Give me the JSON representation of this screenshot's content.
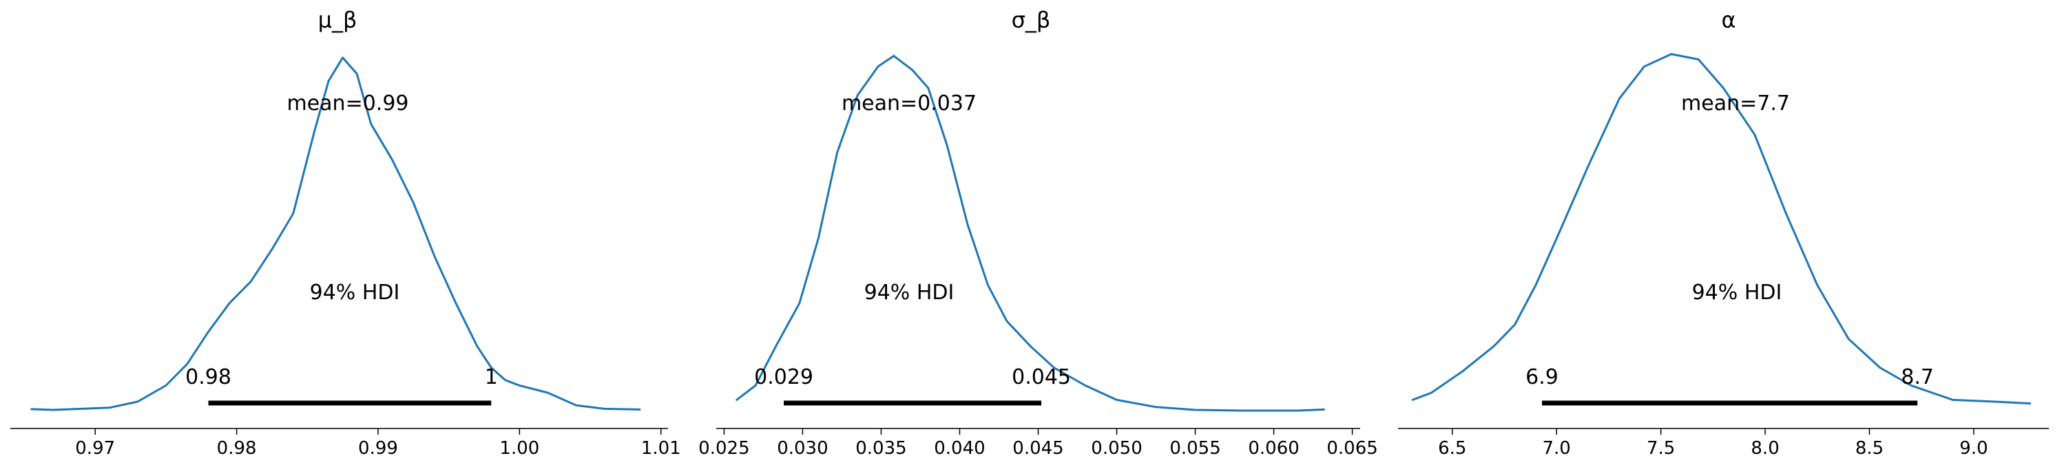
{
  "colors": {
    "curve": "#1f77b4",
    "hdi_bar": "#000000",
    "axis": "#000000",
    "background": "#ffffff"
  },
  "chart_data": [
    {
      "type": "density",
      "title": "μ_β",
      "mean_label": "mean=0.99",
      "hdi_label": "94% HDI",
      "hdi": {
        "low": 0.978,
        "high": 0.998,
        "low_label": "0.98",
        "high_label": "1"
      },
      "xlim": [
        0.964,
        1.0105
      ],
      "ylim": [
        0,
        1
      ],
      "xticks": [
        0.97,
        0.98,
        0.99,
        1.0,
        1.01
      ],
      "xtick_labels": [
        "0.97",
        "0.98",
        "0.99",
        "1.00",
        "1.01"
      ],
      "curve": {
        "x": [
          0.9655,
          0.967,
          0.969,
          0.971,
          0.973,
          0.975,
          0.9765,
          0.978,
          0.9795,
          0.981,
          0.9825,
          0.984,
          0.9855,
          0.9865,
          0.9875,
          0.9885,
          0.9895,
          0.991,
          0.9925,
          0.994,
          0.9955,
          0.997,
          0.998,
          0.999,
          1.0,
          1.002,
          1.004,
          1.006,
          1.0085
        ],
        "y": [
          0.004,
          0.002,
          0.005,
          0.008,
          0.025,
          0.07,
          0.13,
          0.22,
          0.3,
          0.36,
          0.45,
          0.55,
          0.78,
          0.92,
          0.985,
          0.94,
          0.8,
          0.7,
          0.58,
          0.43,
          0.3,
          0.18,
          0.12,
          0.085,
          0.07,
          0.05,
          0.015,
          0.005,
          0.003
        ]
      }
    },
    {
      "type": "density",
      "title": "σ_β",
      "mean_label": "mean=0.037",
      "hdi_label": "94% HDI",
      "hdi": {
        "low": 0.0288,
        "high": 0.0452,
        "low_label": "0.029",
        "high_label": "0.045"
      },
      "xlim": [
        0.0245,
        0.0655
      ],
      "ylim": [
        0,
        1
      ],
      "xticks": [
        0.025,
        0.03,
        0.035,
        0.04,
        0.045,
        0.05,
        0.055,
        0.06,
        0.065
      ],
      "xtick_labels": [
        "0.025",
        "0.030",
        "0.035",
        "0.040",
        "0.045",
        "0.050",
        "0.055",
        "0.060",
        "0.065"
      ],
      "curve": {
        "x": [
          0.0258,
          0.027,
          0.0283,
          0.0298,
          0.031,
          0.0322,
          0.0335,
          0.0348,
          0.0358,
          0.037,
          0.038,
          0.0392,
          0.0405,
          0.0418,
          0.043,
          0.0445,
          0.046,
          0.048,
          0.05,
          0.0525,
          0.055,
          0.058,
          0.0615,
          0.0632
        ],
        "y": [
          0.03,
          0.07,
          0.18,
          0.3,
          0.48,
          0.72,
          0.88,
          0.96,
          0.99,
          0.95,
          0.9,
          0.74,
          0.52,
          0.35,
          0.25,
          0.18,
          0.12,
          0.07,
          0.03,
          0.01,
          0.002,
          0.0,
          0.0,
          0.003
        ]
      }
    },
    {
      "type": "density",
      "title": "α",
      "mean_label": "mean=7.7",
      "hdi_label": "94% HDI",
      "hdi": {
        "low": 6.93,
        "high": 8.73,
        "low_label": "6.9",
        "high_label": "8.7"
      },
      "xlim": [
        6.24,
        9.36
      ],
      "ylim": [
        0,
        1
      ],
      "xticks": [
        6.5,
        7.0,
        7.5,
        8.0,
        8.5,
        9.0
      ],
      "xtick_labels": [
        "6.5",
        "7.0",
        "7.5",
        "8.0",
        "8.5",
        "9.0"
      ],
      "curve": {
        "x": [
          6.31,
          6.4,
          6.55,
          6.7,
          6.8,
          6.9,
          7.0,
          7.15,
          7.3,
          7.42,
          7.55,
          7.68,
          7.8,
          7.95,
          8.1,
          8.25,
          8.4,
          8.55,
          8.7,
          8.8,
          8.9,
          9.1,
          9.27
        ],
        "y": [
          0.03,
          0.05,
          0.11,
          0.18,
          0.24,
          0.35,
          0.48,
          0.68,
          0.87,
          0.96,
          0.995,
          0.98,
          0.9,
          0.77,
          0.55,
          0.35,
          0.2,
          0.12,
          0.07,
          0.05,
          0.03,
          0.025,
          0.02
        ]
      }
    }
  ]
}
